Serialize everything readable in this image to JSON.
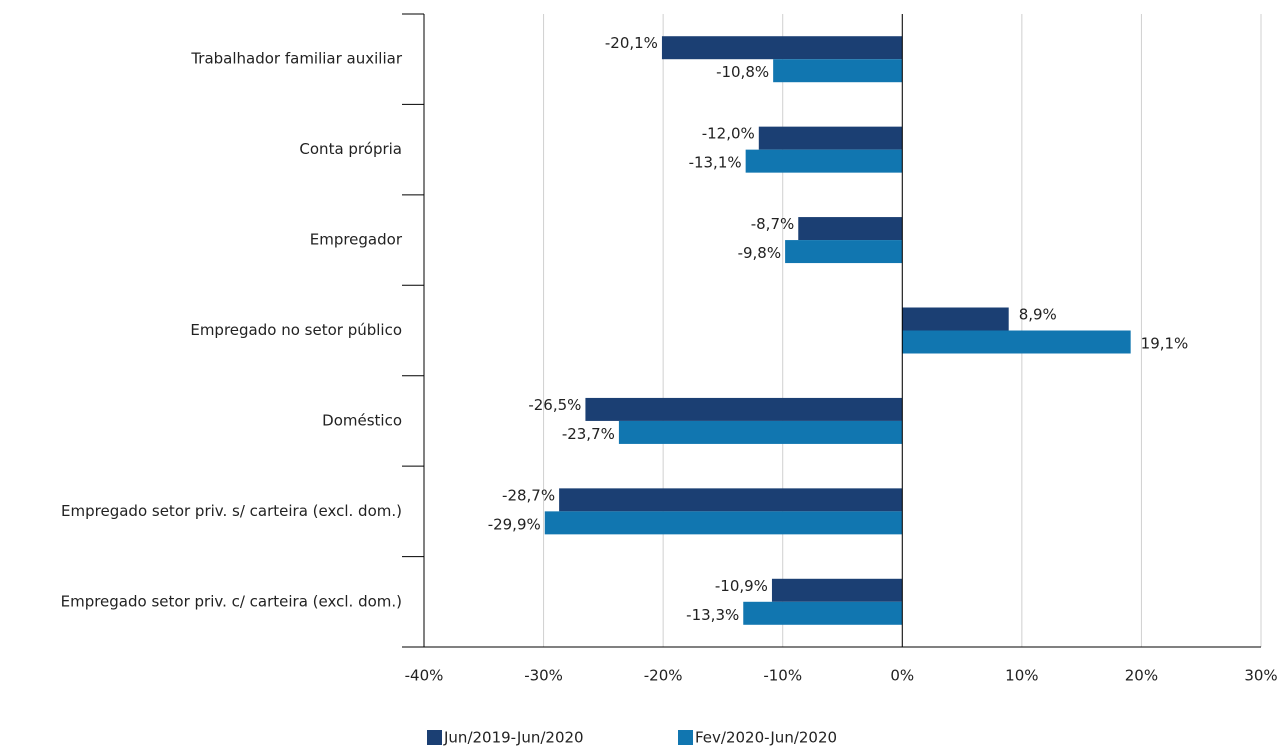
{
  "chart_data": {
    "type": "hbar",
    "categories": [
      "Trabalhador familiar auxiliar",
      "Conta própria",
      "Empregador",
      "Empregado no setor público",
      "Doméstico",
      "Empregado setor priv. s/ carteira (excl. dom.)",
      "Empregado setor priv. c/ carteira (excl. dom.)"
    ],
    "series": [
      {
        "name": "Jun/2019-Jun/2020",
        "color": "#1b3f73",
        "values": [
          -20.1,
          -12.0,
          -8.7,
          8.9,
          -26.5,
          -28.7,
          -10.9
        ],
        "value_labels": [
          "-20,1%",
          "-12,0%",
          "-8,7%",
          "8,9%",
          "-26,5%",
          "-28,7%",
          "-10,9%"
        ]
      },
      {
        "name": "Fev/2020-Jun/2020",
        "color": "#1176b0",
        "values": [
          -10.8,
          -13.1,
          -9.8,
          19.1,
          -23.7,
          -29.9,
          -13.3
        ],
        "value_labels": [
          "-10,8%",
          "-13,1%",
          "-9,8%",
          "19,1%",
          "-23,7%",
          "-29,9%",
          "-13,3%"
        ]
      }
    ],
    "xlim": [
      -40,
      30
    ],
    "xticks": [
      {
        "value": -40,
        "label": "-40%"
      },
      {
        "value": -30,
        "label": "-30%"
      },
      {
        "value": -20,
        "label": "-20%"
      },
      {
        "value": -10,
        "label": "-10%"
      },
      {
        "value": 0,
        "label": "0%"
      },
      {
        "value": 10,
        "label": "10%"
      },
      {
        "value": 20,
        "label": "20%"
      },
      {
        "value": 30,
        "label": "30%"
      }
    ],
    "grid": true,
    "legend": "bottom"
  }
}
